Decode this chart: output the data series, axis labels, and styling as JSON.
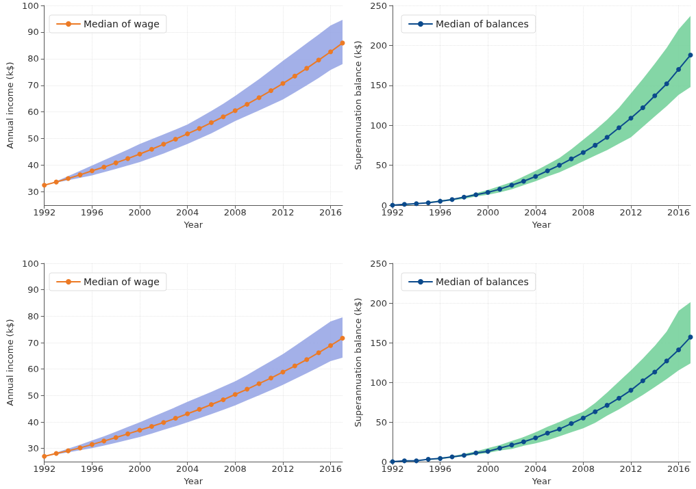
{
  "chart_data": [
    {
      "type": "line",
      "xlabel": "Year",
      "ylabel": "Annual income (k$)",
      "xlim": [
        1992,
        2017
      ],
      "xticks": [
        1992,
        1996,
        2000,
        2004,
        2008,
        2012,
        2016
      ],
      "ylim": [
        25,
        100
      ],
      "yticks": [
        30,
        40,
        50,
        60,
        70,
        80,
        90,
        100
      ],
      "grid": true,
      "legend": "top left",
      "marker": "circle",
      "line_style": "solid",
      "x": [
        1992,
        1993,
        1994,
        1995,
        1996,
        1997,
        1998,
        1999,
        2000,
        2001,
        2002,
        2003,
        2004,
        2005,
        2006,
        2007,
        2008,
        2009,
        2010,
        2011,
        2012,
        2013,
        2014,
        2015,
        2016,
        2017
      ],
      "series": [
        {
          "name": "Median of wage",
          "color": "#ec7a25",
          "values": [
            32.5,
            33.7,
            35.0,
            36.4,
            37.9,
            39.3,
            40.9,
            42.5,
            44.2,
            46.0,
            47.9,
            49.8,
            51.8,
            53.8,
            56.0,
            58.2,
            60.5,
            62.9,
            65.4,
            68.0,
            70.7,
            73.5,
            76.4,
            79.5,
            82.6,
            85.9
          ],
          "lower": [
            32.5,
            33.5,
            34.4,
            35.3,
            36.2,
            37.4,
            38.6,
            39.9,
            41.2,
            42.8,
            44.4,
            46.2,
            48.0,
            50.0,
            52.0,
            54.3,
            56.6,
            58.6,
            60.6,
            62.6,
            64.7,
            67.3,
            70.0,
            72.8,
            75.8,
            78.0
          ],
          "upper": [
            32.5,
            34.0,
            35.9,
            37.9,
            39.9,
            41.9,
            43.9,
            45.9,
            48.0,
            49.8,
            51.6,
            53.4,
            55.3,
            57.8,
            60.4,
            63.1,
            66.0,
            69.2,
            72.3,
            75.7,
            79.2,
            82.5,
            85.8,
            89.1,
            92.5,
            94.6
          ]
        }
      ]
    },
    {
      "type": "line",
      "xlabel": "Year",
      "ylabel": "Superannuation balance (k$)",
      "xlim": [
        1992,
        2017
      ],
      "xticks": [
        1992,
        1996,
        2000,
        2004,
        2008,
        2012,
        2016
      ],
      "ylim": [
        0,
        250
      ],
      "yticks": [
        0,
        50,
        100,
        150,
        200,
        250
      ],
      "grid": true,
      "legend": "top left",
      "marker": "circle",
      "line_style": "solid",
      "x": [
        1992,
        1993,
        1994,
        1995,
        1996,
        1997,
        1998,
        1999,
        2000,
        2001,
        2002,
        2003,
        2004,
        2005,
        2006,
        2007,
        2008,
        2009,
        2010,
        2011,
        2012,
        2013,
        2014,
        2015,
        2016,
        2017
      ],
      "series": [
        {
          "name": "Median of balances",
          "color": "#0b4a8c",
          "values": [
            0,
            1,
            2,
            3,
            5,
            7,
            10,
            13,
            16,
            20,
            25,
            30,
            36,
            43,
            50,
            58,
            66,
            75,
            85,
            97,
            109,
            122,
            137,
            152,
            170,
            188
          ],
          "lower": [
            0,
            0,
            1,
            3,
            4,
            6,
            8,
            11,
            13,
            16,
            20,
            25,
            30,
            36,
            41,
            48,
            55,
            62,
            69,
            77,
            85,
            98,
            111,
            124,
            138,
            148
          ],
          "upper": [
            0,
            1,
            2,
            4,
            6,
            8,
            11,
            15,
            19,
            24,
            29,
            36,
            43,
            51,
            59,
            70,
            82,
            94,
            107,
            122,
            140,
            158,
            177,
            197,
            220,
            237
          ]
        }
      ]
    },
    {
      "type": "line",
      "xlabel": "Year",
      "ylabel": "Annual income (k$)",
      "xlim": [
        1992,
        2017
      ],
      "xticks": [
        1992,
        1996,
        2000,
        2004,
        2008,
        2012,
        2016
      ],
      "ylim": [
        25,
        100
      ],
      "yticks": [
        30,
        40,
        50,
        60,
        70,
        80,
        90,
        100
      ],
      "grid": true,
      "legend": "top left",
      "marker": "circle",
      "line_style": "solid",
      "x": [
        1992,
        1993,
        1994,
        1995,
        1996,
        1997,
        1998,
        1999,
        2000,
        2001,
        2002,
        2003,
        2004,
        2005,
        2006,
        2007,
        2008,
        2009,
        2010,
        2011,
        2012,
        2013,
        2014,
        2015,
        2016,
        2017
      ],
      "series": [
        {
          "name": "Median of wage",
          "color": "#ec7a25",
          "values": [
            27,
            28.1,
            29.1,
            30.2,
            31.5,
            32.8,
            34.1,
            35.5,
            36.9,
            38.3,
            39.8,
            41.4,
            43.1,
            44.8,
            46.6,
            48.4,
            50.4,
            52.4,
            54.5,
            56.6,
            58.9,
            61.2,
            63.6,
            66.2,
            68.9,
            71.7
          ],
          "lower": [
            27,
            27.8,
            28.5,
            29.3,
            30.1,
            31.1,
            32.1,
            33.2,
            34.3,
            35.6,
            37.0,
            38.4,
            39.9,
            41.4,
            43.0,
            44.6,
            46.3,
            48.2,
            50.1,
            52.0,
            54.0,
            56.2,
            58.4,
            60.7,
            63.0,
            64.3
          ],
          "upper": [
            27,
            28.4,
            29.9,
            31.4,
            33.0,
            34.6,
            36.3,
            38.1,
            39.9,
            41.8,
            43.7,
            45.6,
            47.6,
            49.5,
            51.4,
            53.4,
            55.4,
            57.8,
            60.4,
            63.0,
            65.7,
            68.7,
            71.8,
            74.9,
            78.0,
            79.6
          ]
        }
      ]
    },
    {
      "type": "line",
      "xlabel": "Year",
      "ylabel": "Superannuation balance (k$)",
      "xlim": [
        1992,
        2017
      ],
      "xticks": [
        1992,
        1996,
        2000,
        2004,
        2008,
        2012,
        2016
      ],
      "ylim": [
        0,
        250
      ],
      "yticks": [
        0,
        50,
        100,
        150,
        200,
        250
      ],
      "grid": true,
      "legend": "top left",
      "marker": "circle",
      "line_style": "solid",
      "x": [
        1992,
        1993,
        1994,
        1995,
        1996,
        1997,
        1998,
        1999,
        2000,
        2001,
        2002,
        2003,
        2004,
        2005,
        2006,
        2007,
        2008,
        2009,
        2010,
        2011,
        2012,
        2013,
        2014,
        2015,
        2016,
        2017
      ],
      "series": [
        {
          "name": "Median of balances",
          "color": "#0b4a8c",
          "values": [
            0,
            1,
            1,
            3,
            4,
            6,
            8,
            11,
            13,
            17,
            21,
            25,
            30,
            36,
            41,
            48,
            55,
            63,
            71,
            80,
            90,
            102,
            113,
            127,
            141,
            157
          ],
          "lower": [
            0,
            0,
            1,
            2,
            3,
            5,
            7,
            9,
            11,
            14,
            16,
            20,
            23,
            27,
            32,
            37,
            42,
            49,
            58,
            66,
            75,
            84,
            94,
            104,
            115,
            124
          ],
          "upper": [
            0,
            1,
            2,
            3,
            5,
            7,
            10,
            13,
            17,
            21,
            26,
            31,
            37,
            44,
            50,
            57,
            63,
            74,
            87,
            101,
            115,
            130,
            146,
            164,
            190,
            201
          ]
        }
      ]
    }
  ]
}
